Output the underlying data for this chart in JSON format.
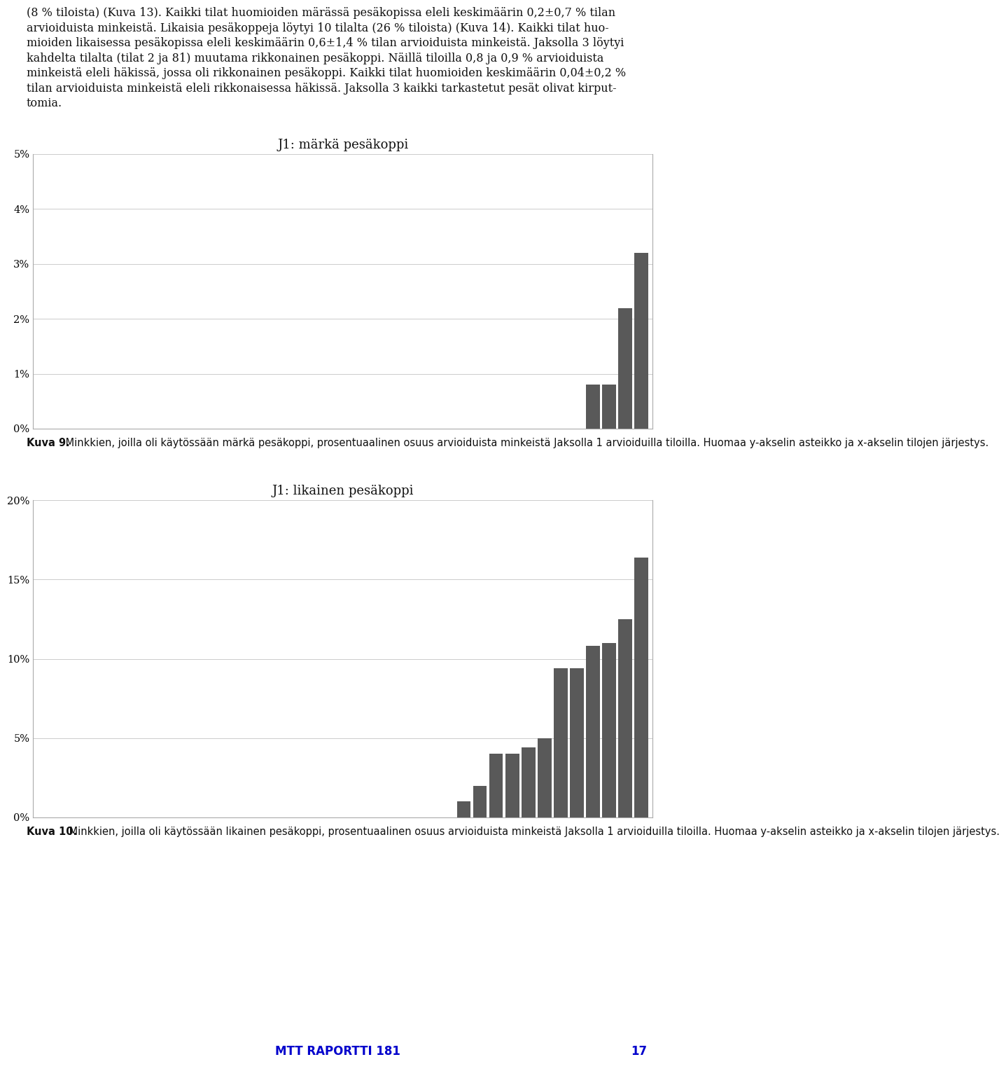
{
  "chart1": {
    "title": "J1: märkä pesäkoppi",
    "values": [
      0,
      0,
      0,
      0,
      0,
      0,
      0,
      0,
      0,
      0,
      0,
      0,
      0,
      0,
      0,
      0,
      0,
      0,
      0,
      0,
      0,
      0,
      0,
      0,
      0,
      0,
      0,
      0,
      0,
      0,
      0,
      0,
      0,
      0,
      0.8,
      0.8,
      2.2,
      3.2
    ],
    "ylim": [
      0,
      5
    ],
    "yticks": [
      0,
      1,
      2,
      3,
      4,
      5
    ],
    "yticklabels": [
      "0%",
      "1%",
      "2%",
      "3%",
      "4%",
      "5%"
    ]
  },
  "chart2": {
    "title": "J1: likainen pesäkoppi",
    "values": [
      0,
      0,
      0,
      0,
      0,
      0,
      0,
      0,
      0,
      0,
      0,
      0,
      0,
      0,
      0,
      0,
      0,
      0,
      0,
      0,
      0,
      0,
      0,
      0,
      0,
      0,
      1.0,
      2.0,
      4.0,
      4.0,
      4.4,
      5.0,
      9.4,
      9.4,
      10.8,
      11.0,
      12.5,
      16.4
    ],
    "ylim": [
      0,
      20
    ],
    "yticks": [
      0,
      5,
      10,
      15,
      20
    ],
    "yticklabels": [
      "0%",
      "5%",
      "10%",
      "15%",
      "20%"
    ]
  },
  "caption1_bold": "Kuva 9.",
  "caption1_normal": " Minkkien, joilla oli käytössään märkä pesäkoppi, prosentuaalinen osuus arvioiduista minkeistä Jaksolla 1 arvioiduilla tiloilla. Huomaa y-akselin asteikko ja x-akselin tilojen järjestys.",
  "caption2_bold": "Kuva 10.",
  "caption2_normal": " Minkkien, joilla oli käytössään likainen pesäkoppi, prosentuaalinen osuus arvioiduista minkeistä Jaksolla 1 arvioiduilla tiloilla. Huomaa y-akselin asteikko ja x-akselin tilojen järjestys.",
  "bar_color": "#595959",
  "background_color": "#ffffff",
  "chart_bg": "#ffffff",
  "grid_color": "#cccccc",
  "border_color": "#aaaaaa",
  "text_intro_lines": [
    "(8 % tiloista) (Kuva 13). Kaikki tilat huomioiden märässä pesäkopissa eleli keskimäärin 0,2±0,7 % tilan",
    "arvioiduista minkeistä. Likaisia pesäkoppeja löytyi 10 tilalta (26 % tiloista) (Kuva 14). Kaikki tilat huo-",
    "mioiden likaisessa pesäkopissa eleli keskimäärin 0,6±1,4 % tilan arvioiduista minkeistä. Jaksolla 3 löytyi",
    "kahdelta tilalta (tilat 2 ja 81) muutama rikkonainen pesäkoppi. Näillä tiloilla 0,8 ja 0,9 % arvioiduista",
    "minkeistä eleli häkissä, jossa oli rikkonainen pesäkoppi. Kaikki tilat huomioiden keskimäärin 0,04±0,2 %",
    "tilan arvioiduista minkeistä eleli rikkonaisessa häkissä. Jaksolla 3 kaikki tarkastetut pesät olivat kirput-",
    "tomia."
  ],
  "footer_text": "MTT RAPORTTI 181",
  "footer_page": "17",
  "title_fontsize": 13,
  "caption_fontsize": 10.5,
  "axis_fontsize": 10.5,
  "intro_fontsize": 11.5
}
